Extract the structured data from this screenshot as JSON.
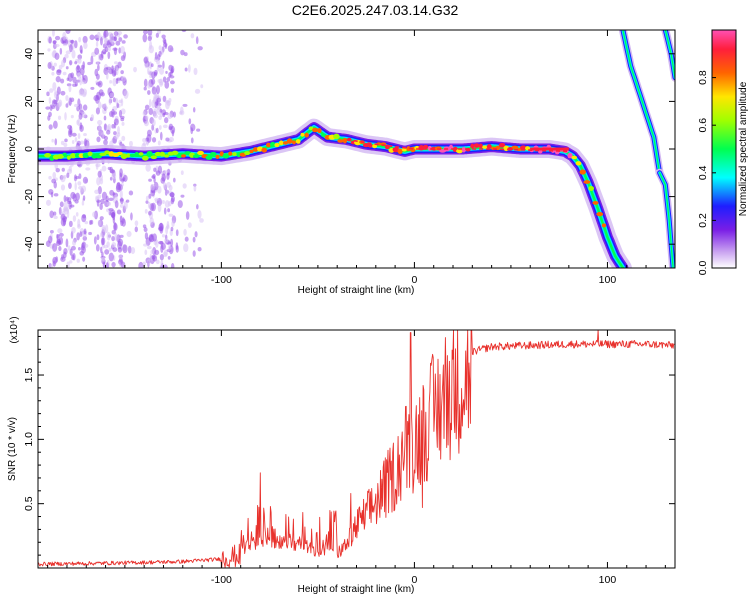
{
  "title": "C2E6.2025.247.03.14.G32",
  "chart_data": [
    {
      "type": "heatmap",
      "name": "spectrogram",
      "xlabel": "Height of straight line (km)",
      "ylabel": "Frequency (Hz)",
      "xlim": [
        -195,
        135
      ],
      "ylim": [
        -50,
        50
      ],
      "x_ticks": [
        -100,
        0,
        100
      ],
      "x_tick_labels": [
        "-100",
        "0",
        "100"
      ],
      "y_ticks": [
        -40,
        -20,
        0,
        20,
        40
      ],
      "y_tick_labels": [
        "-40",
        "-20",
        "0",
        "20",
        "40"
      ],
      "colorbar": {
        "label": "Normalized spectral amplitude",
        "range": [
          0,
          1
        ],
        "ticks": [
          0.0,
          0.2,
          0.4,
          0.6,
          0.8
        ],
        "tick_labels": [
          "0.0",
          "0.2",
          "0.4",
          "0.6",
          "0.8"
        ],
        "colors": [
          "#ffffff",
          "#c8a0f0",
          "#7a1ee6",
          "#1e1eff",
          "#00ffff",
          "#00ff50",
          "#a0ff00",
          "#ffe600",
          "#ff6400",
          "#ff1e3c",
          "#ff50b4"
        ]
      },
      "main_track": {
        "x": [
          -195,
          -180,
          -160,
          -140,
          -120,
          -100,
          -85,
          -70,
          -60,
          -52,
          -45,
          -35,
          -25,
          -15,
          -5,
          0,
          10,
          25,
          40,
          55,
          70,
          78,
          82,
          86,
          90,
          95,
          100,
          104,
          108
        ],
        "y": [
          -3,
          -3,
          -2,
          -3,
          -2,
          -3,
          -1,
          2,
          4,
          9,
          5,
          4,
          2,
          1,
          -1,
          0,
          0,
          0,
          1,
          0,
          0,
          -1,
          -3,
          -7,
          -14,
          -25,
          -37,
          -45,
          -50
        ]
      },
      "secondary_tracks": [
        {
          "x": [
            108,
            112,
            118,
            124,
            127
          ],
          "y": [
            50,
            35,
            20,
            5,
            -10
          ]
        },
        {
          "x": [
            127,
            130,
            132,
            134
          ],
          "y": [
            -10,
            -15,
            -30,
            -50
          ]
        },
        {
          "x": [
            130,
            133,
            135
          ],
          "y": [
            50,
            40,
            30
          ]
        }
      ]
    },
    {
      "type": "line",
      "name": "snr",
      "xlabel": "Height of straight line (km)",
      "ylabel": "SNR (10 * v/v)",
      "ylabel_multiplier": "(x10⁴)",
      "xlim": [
        -195,
        135
      ],
      "ylim": [
        0,
        1.85
      ],
      "x_ticks": [
        -100,
        0,
        100
      ],
      "x_tick_labels": [
        "-100",
        "0",
        "100"
      ],
      "y_ticks": [
        0.5,
        1.0,
        1.5
      ],
      "y_tick_labels": [
        "0.5",
        "1.0",
        "1.5"
      ],
      "color": "#e8312c",
      "envelope": {
        "x": [
          -195,
          -150,
          -120,
          -100,
          -90,
          -80,
          -70,
          -60,
          -50,
          -40,
          -35,
          -30,
          -20,
          -10,
          -5,
          0,
          10,
          20,
          30,
          40,
          60,
          80,
          100,
          120,
          135
        ],
        "y": [
          0.03,
          0.04,
          0.05,
          0.07,
          0.1,
          0.15,
          0.15,
          0.12,
          0.08,
          0.12,
          0.2,
          0.35,
          0.55,
          0.8,
          1.0,
          1.05,
          1.3,
          1.55,
          1.68,
          1.72,
          1.73,
          1.74,
          1.74,
          1.74,
          1.73
        ]
      },
      "peaks": [
        {
          "x": -80,
          "y": 0.74
        },
        {
          "x": -33,
          "y": 0.58
        },
        {
          "x": -2,
          "y": 1.83
        },
        {
          "x": 4,
          "y": 0.47
        },
        {
          "x": 95,
          "y": 1.85
        }
      ]
    }
  ]
}
